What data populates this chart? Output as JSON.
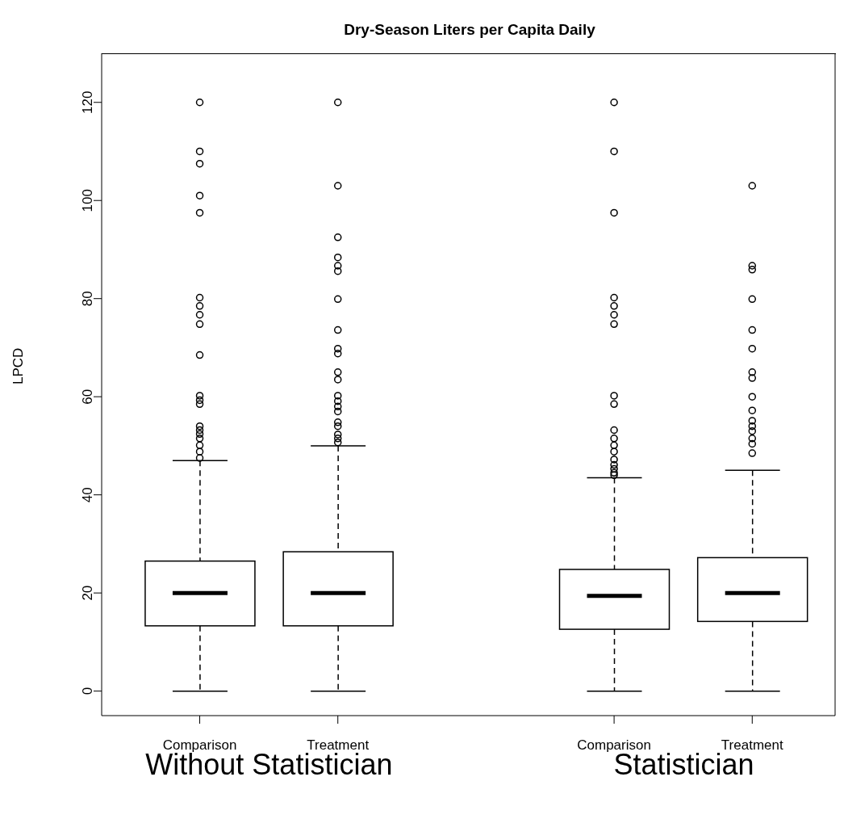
{
  "chart_data": {
    "type": "box",
    "title": "Dry-Season Liters per Capita Daily",
    "ylabel": "LPCD",
    "categories": [
      "Comparison",
      "Treatment",
      null,
      "Comparison",
      "Treatment"
    ],
    "ylim": [
      -5,
      130
    ],
    "yticks": [
      0,
      20,
      40,
      60,
      80,
      100,
      120
    ],
    "grid": false,
    "annotations": [
      "Without Statistician",
      "Statistician"
    ],
    "boxes": [
      {
        "low": 0,
        "q1": 13.3,
        "median": 20,
        "q3": 26.5,
        "high": 47,
        "outliers": [
          47.5,
          48.8,
          50.1,
          51.5,
          52.4,
          53.2,
          54,
          58.5,
          59.3,
          60.2,
          68.5,
          74.8,
          76.7,
          78.5,
          80.2,
          97.5,
          101,
          107.5,
          110,
          120
        ]
      },
      {
        "low": 0,
        "q1": 13.3,
        "median": 20,
        "q3": 28.4,
        "high": 50,
        "outliers": [
          50.7,
          51.5,
          52.3,
          54,
          54.8,
          57,
          58,
          59.1,
          60.2,
          63.5,
          65,
          68.8,
          69.8,
          73.6,
          79.9,
          85.6,
          86.7,
          88.4,
          92.5,
          103,
          120
        ]
      },
      null,
      {
        "low": 0,
        "q1": 12.6,
        "median": 19.4,
        "q3": 24.8,
        "high": 43.5,
        "outliers": [
          44,
          44.5,
          45.3,
          46.1,
          47.2,
          48.8,
          50.1,
          51.5,
          53.2,
          58.5,
          60.2,
          74.8,
          76.7,
          78.5,
          80.2,
          97.5,
          110,
          120
        ]
      },
      {
        "low": 0,
        "q1": 14.2,
        "median": 20,
        "q3": 27.2,
        "high": 45,
        "outliers": [
          48.5,
          50.4,
          51.5,
          53,
          54,
          55.1,
          57.2,
          60,
          63.8,
          65,
          69.8,
          73.6,
          79.9,
          85.9,
          86.7,
          103
        ]
      }
    ]
  }
}
